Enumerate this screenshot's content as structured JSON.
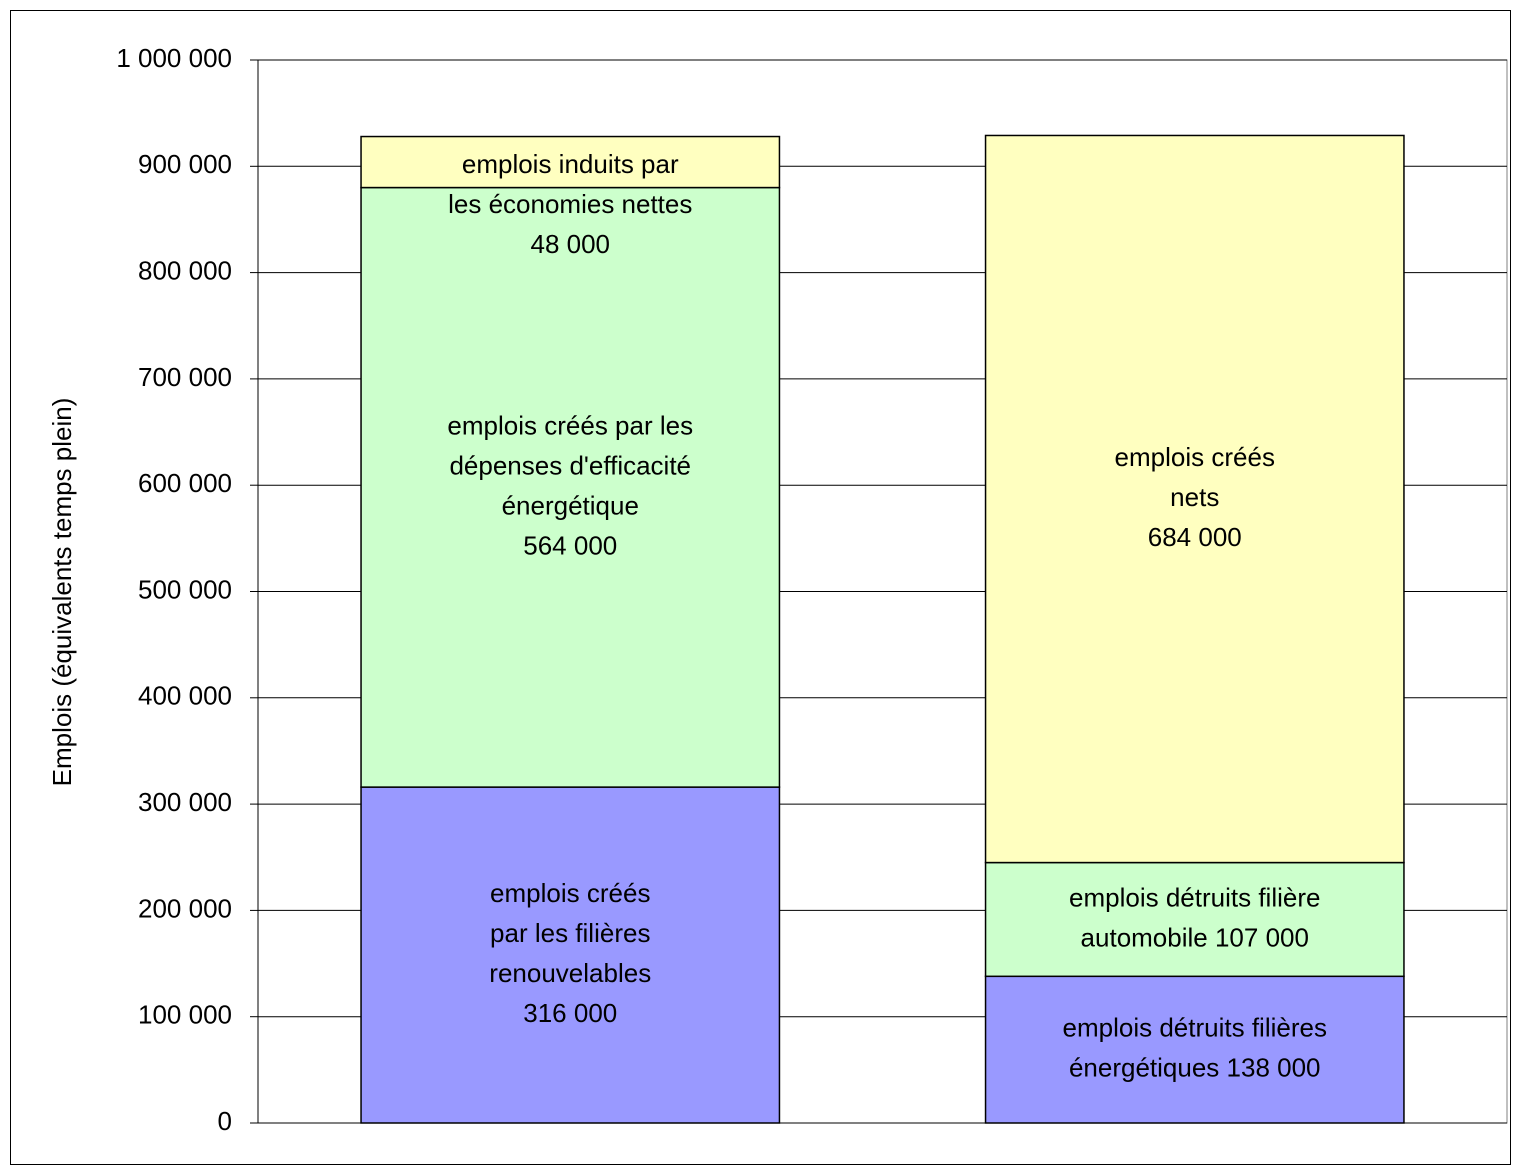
{
  "chart_data": {
    "type": "stacked_bar",
    "y_label": "Emplois (équivalents temps plein)",
    "categories": [
      null,
      null
    ],
    "series": [
      {
        "color": "#9999ff",
        "values": [
          316000,
          138000
        ],
        "value_labels": [
          [
            "emplois créés",
            "par les filières",
            "renouvelables",
            "316 000"
          ],
          [
            "emplois détruits filières",
            "énergétiques 138 000"
          ]
        ]
      },
      {
        "color": "#ccffcc",
        "values": [
          564000,
          107000
        ],
        "value_labels": [
          [
            "emplois créés par les",
            "dépenses d'efficacité",
            "énergétique",
            "564 000"
          ],
          [
            "emplois détruits filière",
            "automobile 107 000"
          ]
        ]
      },
      {
        "color": "#ffffc0",
        "values": [
          48000,
          684000
        ],
        "value_labels": [
          [
            "emplois induits par",
            "les économies nettes",
            "48 000"
          ],
          [
            "emplois créés",
            "nets",
            "684 000"
          ]
        ]
      }
    ],
    "ylim": [
      0,
      1000000
    ],
    "yticks": [
      0,
      {
        "value": 100000,
        "label": "100 000"
      },
      {
        "value": 200000,
        "label": "200 000"
      },
      {
        "value": 300000,
        "label": "300 000"
      },
      {
        "value": 400000,
        "label": "400 000"
      },
      {
        "value": 500000,
        "label": "500 000"
      },
      {
        "value": 600000,
        "label": "600 000"
      },
      {
        "value": 700000,
        "label": "700 000"
      },
      {
        "value": 800000,
        "label": "800 000"
      },
      {
        "value": 900000,
        "label": "900 000"
      },
      {
        "value": 1000000,
        "label": "1 000 000"
      }
    ],
    "grid": true
  }
}
